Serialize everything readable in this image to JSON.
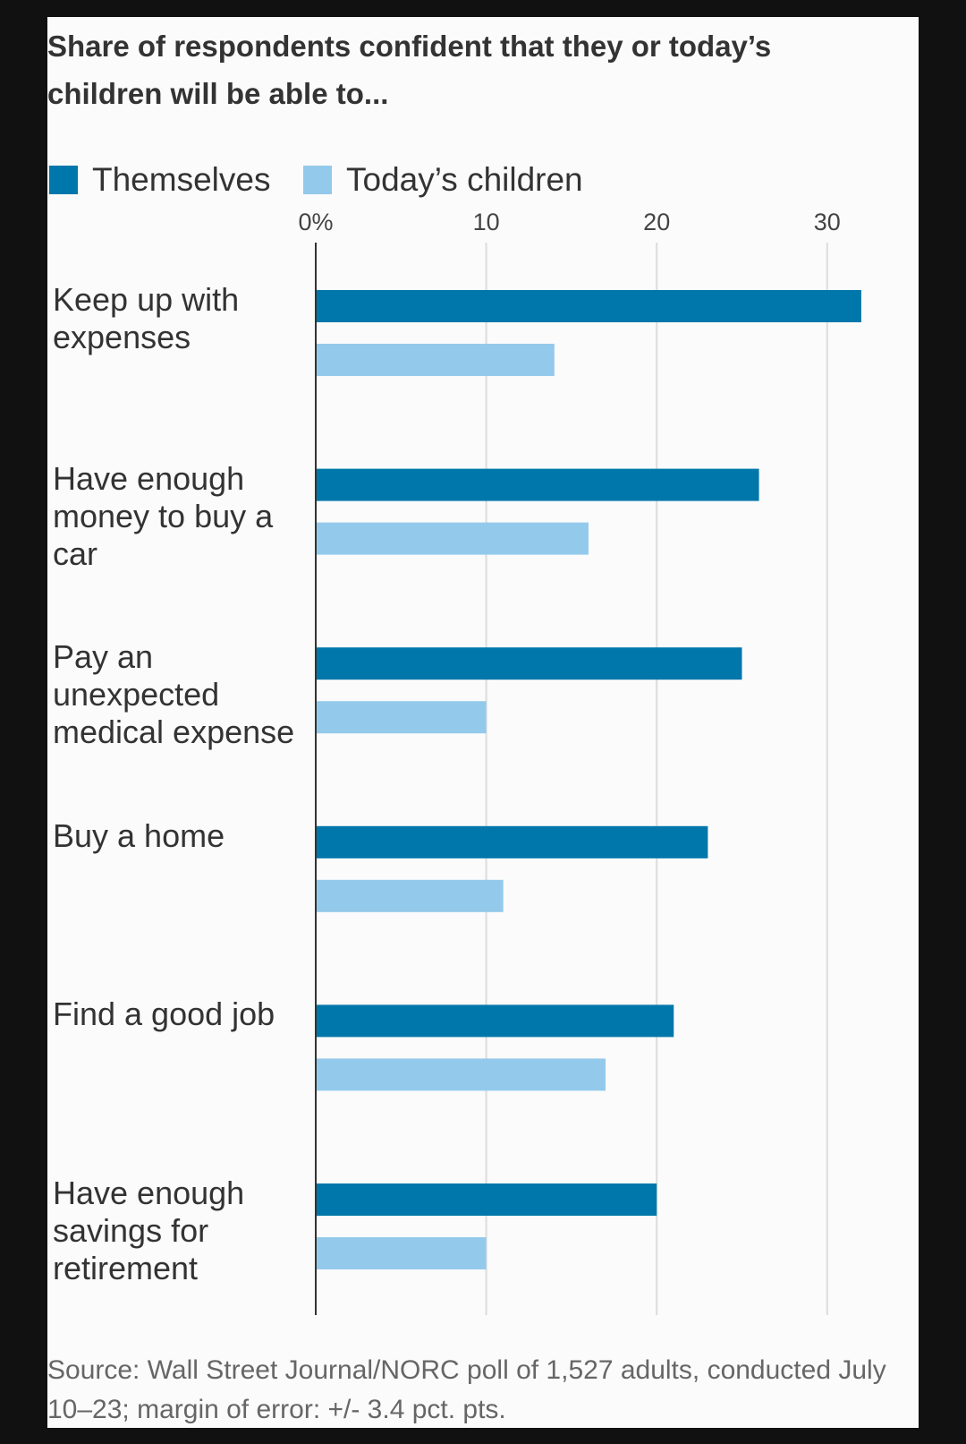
{
  "chart_data": {
    "type": "bar",
    "orientation": "horizontal",
    "title": "Share of respondents confident that they or today’s children will be able to...",
    "categories": [
      "Keep up with expenses",
      "Have enough money to buy a car",
      "Pay an unexpected medical expense",
      "Buy a home",
      "Find a good job",
      "Have enough savings for retirement"
    ],
    "series": [
      {
        "name": "Themselves",
        "color": "#0077aa",
        "values": [
          32,
          26,
          25,
          23,
          21,
          20
        ]
      },
      {
        "name": "Today’s children",
        "color": "#93caeb",
        "values": [
          14,
          16,
          10,
          11,
          17,
          10
        ]
      }
    ],
    "xticks": [
      {
        "value": 0,
        "label": "0%"
      },
      {
        "value": 10,
        "label": "10"
      },
      {
        "value": 20,
        "label": "20"
      },
      {
        "value": 30,
        "label": "30"
      }
    ],
    "xlim": [
      0,
      35
    ],
    "grid": true,
    "legend": "top-left",
    "source": "Source: Wall Street Journal/NORC poll of 1,527 adults, conducted July 10–23; margin of error: +/- 3.4 pct. pts."
  }
}
